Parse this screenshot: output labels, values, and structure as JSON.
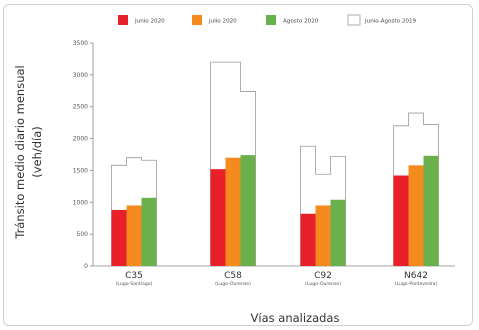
{
  "chart_data": {
    "type": "bar",
    "title": "",
    "xlabel": "Vías analizadas",
    "ylabel_lines": [
      "Tránsito medio diario mensual",
      "(veh/día)"
    ],
    "ylim": [
      0,
      3500
    ],
    "yticks": [
      0,
      500,
      1000,
      1500,
      2000,
      2500,
      3000,
      3500
    ],
    "categories": [
      {
        "name": "C35",
        "sub": "(Lugo-Santiago)"
      },
      {
        "name": "C58",
        "sub": "(Lugo-Ourense)"
      },
      {
        "name": "C92",
        "sub": "(Lugo-Ourense)"
      },
      {
        "name": "N642",
        "sub": "(Lugo-Pontevedra)"
      }
    ],
    "series": [
      {
        "name": "Junio 2020",
        "color": "#e8202a",
        "values": [
          880,
          1520,
          820,
          1420
        ]
      },
      {
        "name": "Julio 2020",
        "color": "#f58a1f",
        "values": [
          950,
          1700,
          950,
          1580
        ]
      },
      {
        "name": "Agosto 2020",
        "color": "#6ab04c",
        "values": [
          1070,
          1740,
          1040,
          1730
        ]
      }
    ],
    "reference": {
      "name": "Junio-Agosto 2019",
      "style": "outline",
      "values": [
        [
          1580,
          1700,
          1660
        ],
        [
          3200,
          3200,
          2740
        ],
        [
          1880,
          1440,
          1720
        ],
        [
          2200,
          2400,
          2220
        ]
      ]
    },
    "grid": false,
    "legend_position": "top"
  }
}
